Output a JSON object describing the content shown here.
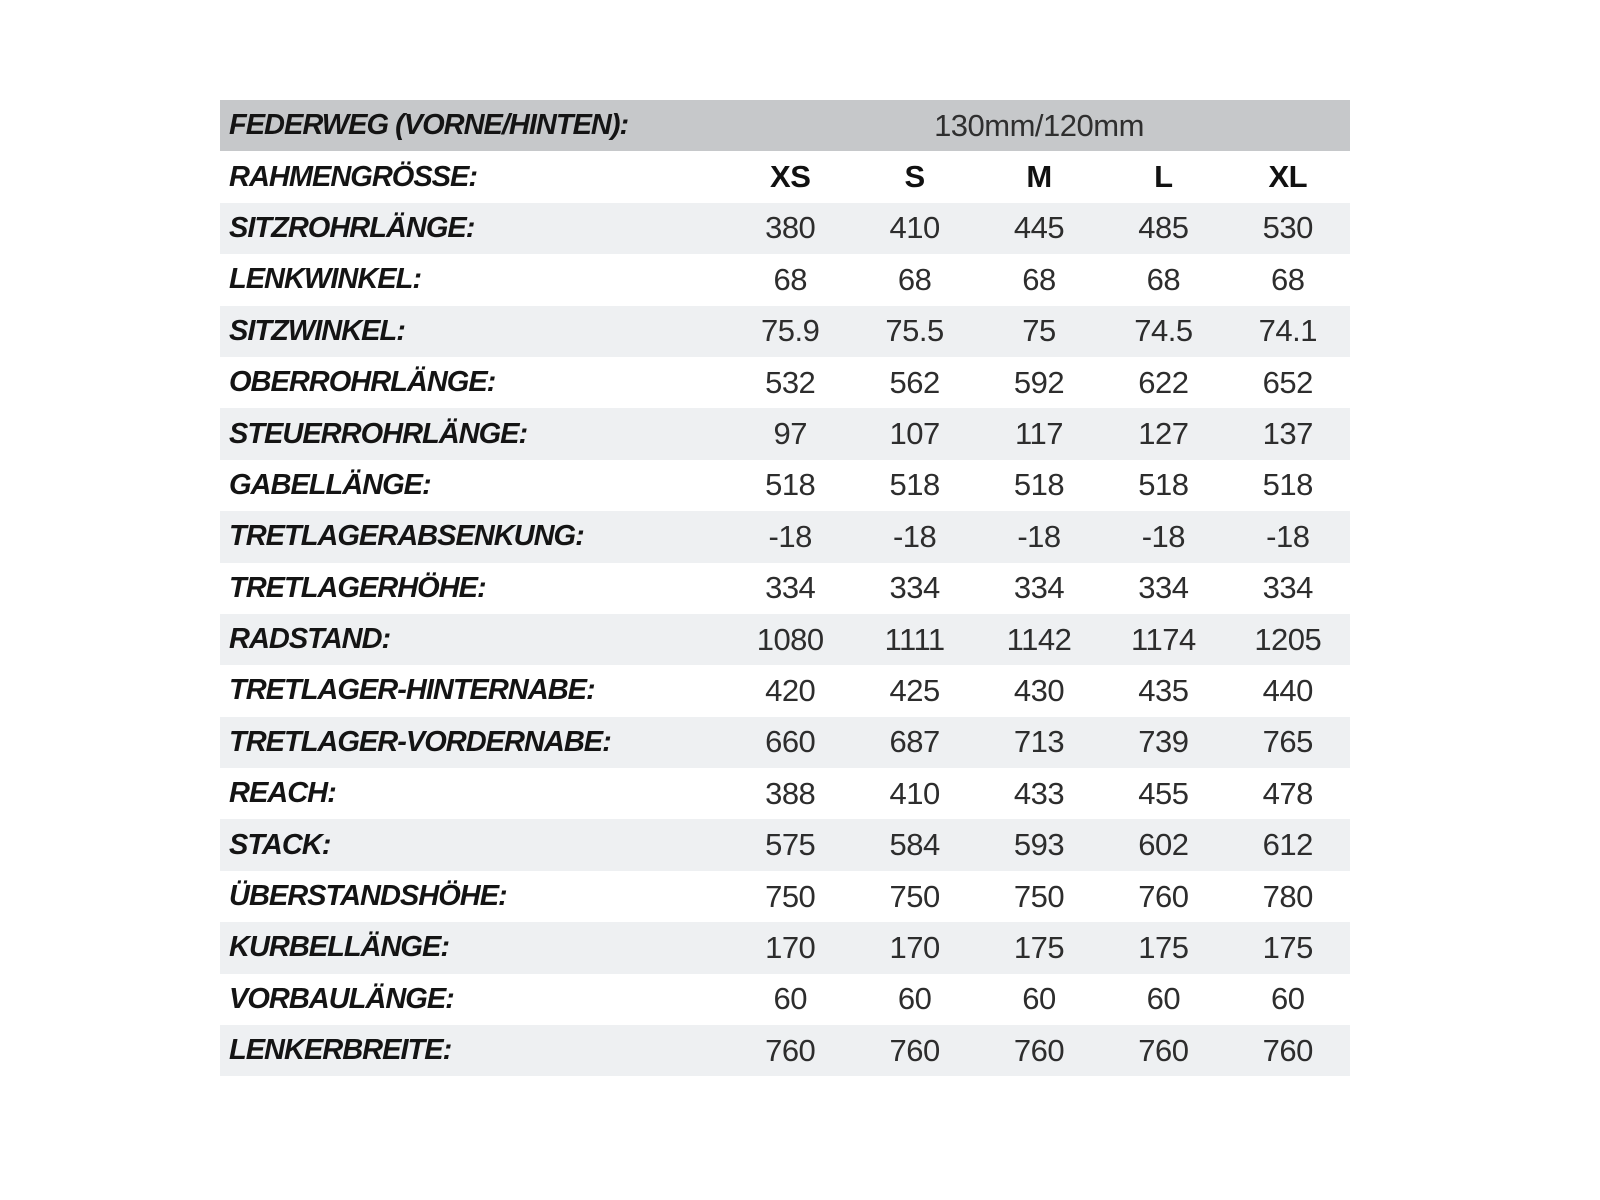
{
  "table": {
    "colors": {
      "header_band_bg": "#c6c8ca",
      "stripe_bg": "#eef0f2",
      "text": "#1c1c1c"
    },
    "travel_row": {
      "label": "FEDERWEG (VORNE/HINTEN):",
      "value": "130mm/120mm"
    },
    "size_row": {
      "label": "RAHMENGRÖSSE:",
      "sizes": [
        "XS",
        "S",
        "M",
        "L",
        "XL"
      ]
    },
    "rows": [
      {
        "label": "SITZROHRLÄNGE:",
        "values": [
          "380",
          "410",
          "445",
          "485",
          "530"
        ]
      },
      {
        "label": "LENKWINKEL:",
        "values": [
          "68",
          "68",
          "68",
          "68",
          "68"
        ]
      },
      {
        "label": "SITZWINKEL:",
        "values": [
          "75.9",
          "75.5",
          "75",
          "74.5",
          "74.1"
        ]
      },
      {
        "label": "OBERROHRLÄNGE:",
        "values": [
          "532",
          "562",
          "592",
          "622",
          "652"
        ]
      },
      {
        "label": "STEUERROHRLÄNGE:",
        "values": [
          "97",
          "107",
          "117",
          "127",
          "137"
        ]
      },
      {
        "label": "GABELLÄNGE:",
        "values": [
          "518",
          "518",
          "518",
          "518",
          "518"
        ]
      },
      {
        "label": "TRETLAGERABSENKUNG:",
        "values": [
          "-18",
          "-18",
          "-18",
          "-18",
          "-18"
        ]
      },
      {
        "label": "TRETLAGERHÖHE:",
        "values": [
          "334",
          "334",
          "334",
          "334",
          "334"
        ]
      },
      {
        "label": "RADSTAND:",
        "values": [
          "1080",
          "1111",
          "1142",
          "1174",
          "1205"
        ]
      },
      {
        "label": "TRETLAGER-HINTERNABE:",
        "values": [
          "420",
          "425",
          "430",
          "435",
          "440"
        ]
      },
      {
        "label": "TRETLAGER-VORDERNABE:",
        "values": [
          "660",
          "687",
          "713",
          "739",
          "765"
        ]
      },
      {
        "label": "REACH:",
        "values": [
          "388",
          "410",
          "433",
          "455",
          "478"
        ]
      },
      {
        "label": "STACK:",
        "values": [
          "575",
          "584",
          "593",
          "602",
          "612"
        ]
      },
      {
        "label": "ÜBERSTANDSHÖHE:",
        "values": [
          "750",
          "750",
          "750",
          "760",
          "780"
        ]
      },
      {
        "label": "KURBELLÄNGE:",
        "values": [
          "170",
          "170",
          "175",
          "175",
          "175"
        ]
      },
      {
        "label": "VORBAULÄNGE:",
        "values": [
          "60",
          "60",
          "60",
          "60",
          "60"
        ]
      },
      {
        "label": "LENKERBREITE:",
        "values": [
          "760",
          "760",
          "760",
          "760",
          "760"
        ]
      }
    ]
  }
}
